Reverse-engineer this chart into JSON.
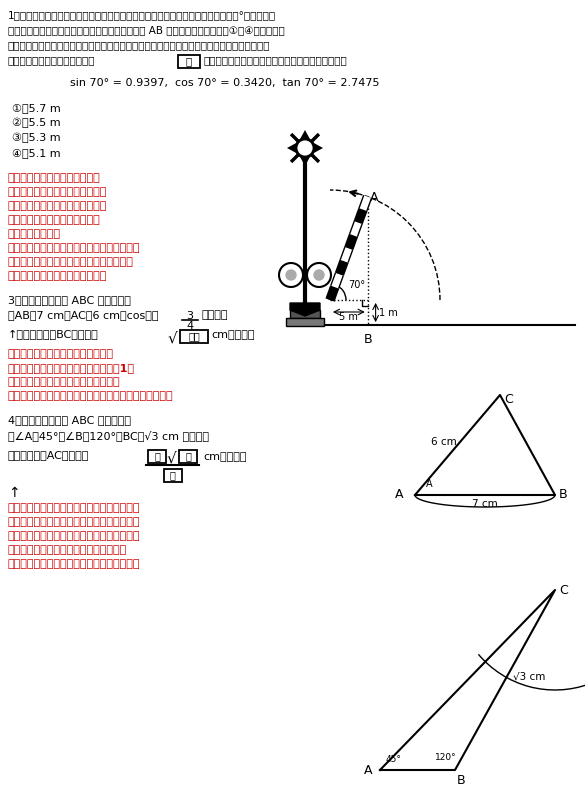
{
  "bg_color": "#ffffff",
  "text_color_black": "#000000",
  "text_color_red": "#cc0000",
  "p1_line1": "1　下の図のような遅断機がある。長さ５ｍの遥断機のバーが水平な状態から７０°の角度まで",
  "p1_line2": "　上がったとき，地上からバーの先端までの高さ AB はおよそ何ｍか。次の①〜④のうちから",
  "p1_line3": "　最も適当なものを一つ選べ。ただし，遅断機のバーは地上から１ｍの高さに取り付けられて",
  "p1_line4a": "　いるものとする。解答番号は",
  "p1_box": "ア",
  "p1_line4b": "。必要であれば，次の三角比の値を利用すること。",
  "trig": "sin 70° = 0.9397,  cos 70° = 0.3420,  tan 70° = 2.7475",
  "choices": [
    "①　5.7 m",
    "②　5.5 m",
    "③　5.3 m",
    "④　5.1 m"
  ],
  "red1": [
    "難しそうな問題に見えますが、",
    "三角比の基礎の基礎の問題です。",
    "図の中に直角三角形を見つけて、",
    "三角比の定義をあてはめれば、",
    "簡単に解けます。",
    "毎回、ビルの高さや橋の長さなど、建造物の",
    "サイズを求める問題が出題されますので、",
    "過去問で練習しておきましょう。"
  ],
  "p3_line1": "3　右の図の三角形 ABC において，",
  "p3_line2a": "　AB＝7 cm，AC＝6 cm，cosＡ＝",
  "p3_line2b": "である。",
  "p3_ans_a": "↑　このとき，BCの長さは",
  "p3_box": "エオ",
  "p3_ans_b": "cmである。",
  "red2": [
    "余弦定理を使って解く、おきまりの",
    "パターン問題。ただ、余弦定理は数学1で",
    "習う公式の中で、一番長い公式です。",
    "まずは、公式を見ながら、あてはめ方を覚えましょう。"
  ],
  "p4_line1": "4　右の図の三角形 ABC において，",
  "p4_line2": "　∠A＝45°，∠B＝120°，BC＝√3 cm である。",
  "p4_ans_a": "　このとき，ACの長さは",
  "p4_box1": "カ",
  "p4_box2": "キ",
  "p4_box3": "ク",
  "p4_ans_b": "cmである。",
  "red3": [
    "こちらは正弦定理を使って解く、おきまりの",
    "パターン問題。見慣れない形をしている公式",
    "で、しかも分数の形をしているので、十分に",
    "練習しましょう。一度覚えてしまえば、",
    "この問題はらくらくクリアできるでしょう。"
  ]
}
